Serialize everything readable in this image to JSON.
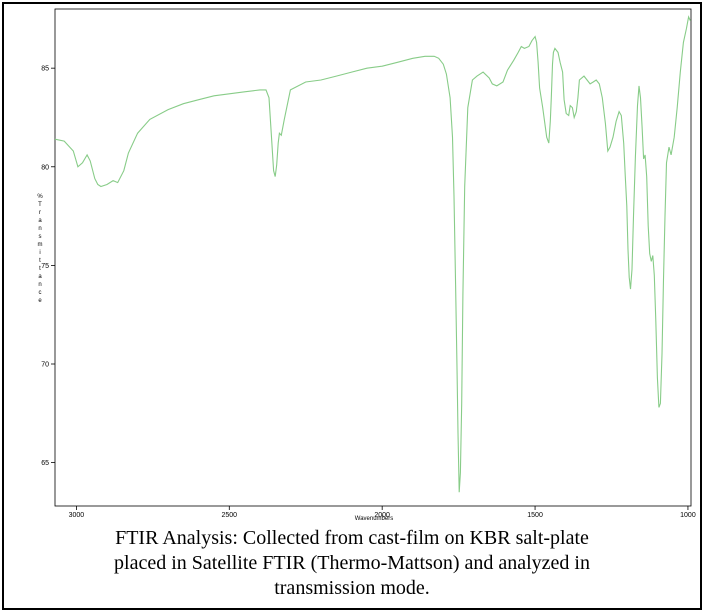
{
  "chart_data": {
    "type": "line",
    "title": "",
    "xlabel": "Wavenumbers",
    "ylabel": "% Transmittance",
    "ylabel_lines": [
      "%",
      "T",
      "r",
      "a",
      "n",
      "s",
      "m",
      "i",
      "t",
      "t",
      "a",
      "n",
      "c",
      "e"
    ],
    "xlim": [
      3070,
      990
    ],
    "ylim": [
      62.8,
      88.0
    ],
    "x_ticks": [
      3000,
      2500,
      2000,
      1500,
      1000
    ],
    "y_ticks": [
      65,
      70,
      75,
      80,
      85
    ],
    "grid": false,
    "line_color": "#88cc88",
    "series": [
      {
        "x": [
          3070,
          3040,
          3010,
          2995,
          2980,
          2965,
          2955,
          2940,
          2930,
          2920,
          2900,
          2880,
          2865,
          2845,
          2830,
          2800,
          2760,
          2700,
          2650,
          2600,
          2550,
          2500,
          2450,
          2400,
          2380,
          2370,
          2362,
          2355,
          2350,
          2345,
          2340,
          2336,
          2330,
          2320,
          2300,
          2250,
          2200,
          2150,
          2100,
          2050,
          2000,
          1950,
          1900,
          1860,
          1830,
          1815,
          1800,
          1790,
          1778,
          1770,
          1765,
          1760,
          1755,
          1752,
          1748,
          1744,
          1740,
          1736,
          1730,
          1720,
          1705,
          1690,
          1670,
          1650,
          1640,
          1625,
          1605,
          1590,
          1570,
          1555,
          1545,
          1535,
          1520,
          1510,
          1500,
          1495,
          1490,
          1485,
          1475,
          1462,
          1455,
          1450,
          1447,
          1443,
          1440,
          1435,
          1425,
          1418,
          1410,
          1405,
          1398,
          1390,
          1385,
          1378,
          1372,
          1365,
          1360,
          1355,
          1340,
          1320,
          1310,
          1300,
          1290,
          1280,
          1270,
          1262,
          1255,
          1245,
          1235,
          1225,
          1218,
          1210,
          1205,
          1200,
          1196,
          1192,
          1188,
          1183,
          1178,
          1172,
          1165,
          1160,
          1155,
          1150,
          1145,
          1140,
          1135,
          1130,
          1125,
          1120,
          1115,
          1110,
          1105,
          1100,
          1095,
          1090,
          1085,
          1080,
          1075,
          1070,
          1062,
          1055,
          1045,
          1035,
          1025,
          1015,
          1005,
          998,
          992
        ],
        "values": [
          81.4,
          81.3,
          80.8,
          80.0,
          80.2,
          80.6,
          80.3,
          79.4,
          79.1,
          79.0,
          79.1,
          79.3,
          79.2,
          79.8,
          80.7,
          81.7,
          82.4,
          82.9,
          83.2,
          83.4,
          83.6,
          83.7,
          83.8,
          83.9,
          83.9,
          83.5,
          81.5,
          79.8,
          79.5,
          80.1,
          81.2,
          81.7,
          81.6,
          82.4,
          83.9,
          84.3,
          84.4,
          84.6,
          84.8,
          85.0,
          85.1,
          85.3,
          85.5,
          85.6,
          85.6,
          85.5,
          85.2,
          84.7,
          83.5,
          81.5,
          78.5,
          74.0,
          69.5,
          66.5,
          63.5,
          64.5,
          68.0,
          73.5,
          79.0,
          83.0,
          84.4,
          84.6,
          84.8,
          84.5,
          84.2,
          84.1,
          84.3,
          84.9,
          85.4,
          85.8,
          86.1,
          86.0,
          86.1,
          86.4,
          86.6,
          86.3,
          85.3,
          84.0,
          83.0,
          81.5,
          81.2,
          82.3,
          83.5,
          85.2,
          85.8,
          86.0,
          85.8,
          85.3,
          84.8,
          83.4,
          82.7,
          82.6,
          83.1,
          83.0,
          82.5,
          82.8,
          83.5,
          84.4,
          84.6,
          84.2,
          84.3,
          84.4,
          84.2,
          83.5,
          82.2,
          80.8,
          81.0,
          81.5,
          82.3,
          82.8,
          82.6,
          81.2,
          79.5,
          78.0,
          75.8,
          74.4,
          73.8,
          74.8,
          77.5,
          80.5,
          83.1,
          84.1,
          83.5,
          82.0,
          80.4,
          80.6,
          79.5,
          77.0,
          75.6,
          75.2,
          75.5,
          74.5,
          72.2,
          69.3,
          67.8,
          68.0,
          70.5,
          74.3,
          77.5,
          80.2,
          81.0,
          80.6,
          81.5,
          83.0,
          84.8,
          86.3,
          87.0,
          87.6,
          87.4
        ]
      }
    ]
  },
  "caption": {
    "line1": "FTIR Analysis: Collected from cast-film on KBR salt-plate",
    "line2": "placed in Satellite FTIR (Thermo-Mattson) and analyzed in",
    "line3": "transmission mode."
  }
}
